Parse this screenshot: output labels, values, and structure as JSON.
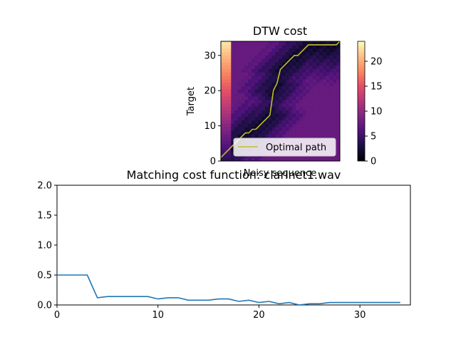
{
  "chart_data": [
    {
      "type": "heatmap",
      "title": "DTW cost",
      "xlabel": "Noisy sequence",
      "ylabel": "Target",
      "x_ticks": [],
      "y_ticks": [
        0,
        10,
        20,
        30
      ],
      "xlim": [
        0,
        34
      ],
      "ylim": [
        0,
        34
      ],
      "colormap": "magma",
      "colorbar": {
        "ticks": [
          0,
          5,
          10,
          15,
          20
        ],
        "range": [
          0,
          24
        ]
      },
      "legend": {
        "placement": "lower-right",
        "entries": [
          "Optimal path"
        ]
      },
      "path_color": "#bfbf2a",
      "optimal_path": {
        "x": [
          0,
          1,
          2,
          3,
          4,
          5,
          6,
          7,
          8,
          9,
          10,
          11,
          12,
          13,
          14,
          15,
          16,
          17,
          18,
          19,
          20,
          21,
          22,
          23,
          24,
          25,
          26,
          27,
          28,
          29,
          30,
          31,
          32,
          33,
          34
        ],
        "y": [
          1,
          2,
          3,
          4,
          5,
          6,
          7,
          8,
          8,
          9,
          9,
          10,
          11,
          12,
          13,
          20,
          22,
          26,
          27,
          28,
          29,
          30,
          30,
          31,
          32,
          33,
          33,
          33,
          33,
          33,
          33,
          33,
          33,
          33,
          34
        ]
      }
    },
    {
      "type": "line",
      "title": "Matching cost function: clarinet1.wav",
      "xlabel": "",
      "ylabel": "",
      "x_ticks": [
        0,
        10,
        20,
        30
      ],
      "y_ticks": [
        "0.0",
        "0.5",
        "1.0",
        "1.5",
        "2.0"
      ],
      "xlim": [
        0,
        35
      ],
      "ylim": [
        0,
        2.0
      ],
      "line_color": "#1f77b4",
      "series": [
        {
          "x": [
            0,
            1,
            2,
            3,
            4,
            5,
            6,
            7,
            8,
            9,
            10,
            11,
            12,
            13,
            14,
            15,
            16,
            17,
            18,
            19,
            20,
            21,
            22,
            23,
            24,
            25,
            26,
            27,
            28,
            29,
            30,
            31,
            32,
            33,
            34
          ],
          "values": [
            0.5,
            0.5,
            0.5,
            0.5,
            0.12,
            0.14,
            0.14,
            0.14,
            0.14,
            0.14,
            0.1,
            0.12,
            0.12,
            0.08,
            0.08,
            0.08,
            0.1,
            0.1,
            0.06,
            0.08,
            0.04,
            0.06,
            0.02,
            0.04,
            0.0,
            0.02,
            0.02,
            0.04,
            0.04,
            0.04,
            0.04,
            0.04,
            0.04,
            0.04,
            0.04
          ]
        }
      ]
    }
  ]
}
